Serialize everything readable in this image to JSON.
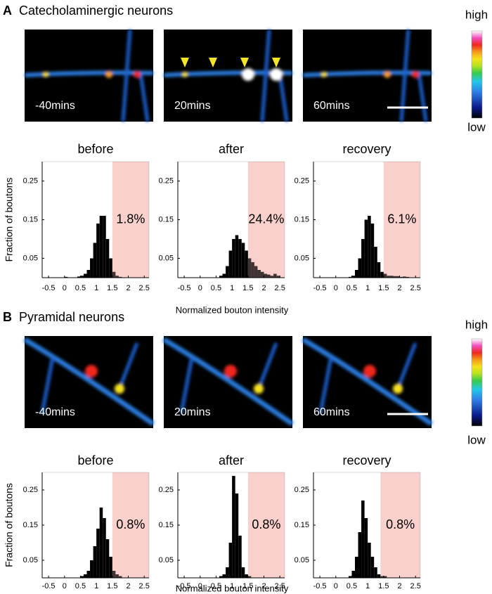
{
  "panels": [
    {
      "label": "A",
      "title": "Catecholaminergic neurons",
      "images": [
        "-40mins",
        "20mins",
        "60mins"
      ],
      "colorbar": {
        "high": "high",
        "low": "low"
      },
      "y_label": "Fraction of boutons",
      "x_label": "Normalized bouton intensity"
    },
    {
      "label": "B",
      "title": "Pyramidal neurons",
      "images": [
        "-40mins",
        "20mins",
        "60mins"
      ],
      "colorbar": {
        "high": "high",
        "low": "low"
      },
      "y_label": "Fraction of boutons",
      "x_label": "Normalized bouton intensity"
    }
  ],
  "chart_data": [
    {
      "type": "histogram",
      "title": "before",
      "annotation": "1.8%",
      "threshold": 1.5,
      "color": "#000000",
      "highlight_color": "#f9d0cc",
      "annotation_color": "#e8262b",
      "bins": [
        0,
        0.1,
        0.2,
        0.3,
        0.4,
        0.5,
        0.6,
        0.7,
        0.8,
        0.9,
        1,
        1.1,
        1.2,
        1.3,
        1.4,
        1.5,
        1.6,
        1.7,
        1.8,
        1.9,
        2,
        2.1,
        2.2,
        2.3,
        2.4,
        2.5
      ],
      "values": [
        0.002,
        0,
        0,
        0,
        0.003,
        0.005,
        0.01,
        0.02,
        0.05,
        0.09,
        0.14,
        0.16,
        0.16,
        0.1,
        0.05,
        0.015,
        0.005,
        0.002,
        0,
        0,
        0,
        0,
        0,
        0,
        0
      ],
      "xlim": [
        -0.7,
        2.65
      ],
      "ylim": [
        0,
        0.3
      ],
      "xticks": [
        -0.5,
        0,
        0.5,
        1,
        1.5,
        2,
        2.5
      ],
      "yticks": [
        0.05,
        0.15,
        0.25
      ]
    },
    {
      "type": "histogram",
      "title": "after",
      "annotation": "24.4%",
      "threshold": 1.5,
      "color": "#000000",
      "highlight_color": "#f9d0cc",
      "annotation_color": "#e8262b",
      "bins": [
        0,
        0.1,
        0.2,
        0.3,
        0.4,
        0.5,
        0.6,
        0.7,
        0.8,
        0.9,
        1,
        1.1,
        1.2,
        1.3,
        1.4,
        1.5,
        1.6,
        1.7,
        1.8,
        1.9,
        2,
        2.1,
        2.2,
        2.3,
        2.4,
        2.5
      ],
      "values": [
        0,
        0,
        0,
        0,
        0,
        0,
        0.005,
        0.01,
        0.03,
        0.07,
        0.1,
        0.11,
        0.1,
        0.09,
        0.07,
        0.05,
        0.04,
        0.03,
        0.02,
        0.015,
        0.01,
        0.008,
        0.005,
        0.01,
        0.005
      ],
      "xlim": [
        -0.7,
        2.65
      ],
      "ylim": [
        0,
        0.3
      ],
      "xticks": [
        -0.5,
        0,
        0.5,
        1,
        1.5,
        2,
        2.5
      ],
      "yticks": [
        0.05,
        0.15,
        0.25
      ]
    },
    {
      "type": "histogram",
      "title": "recovery",
      "annotation": "6.1%",
      "threshold": 1.5,
      "color": "#000000",
      "highlight_color": "#f9d0cc",
      "annotation_color": "#e8262b",
      "bins": [
        0,
        0.1,
        0.2,
        0.3,
        0.4,
        0.5,
        0.6,
        0.7,
        0.8,
        0.9,
        1,
        1.1,
        1.2,
        1.3,
        1.4,
        1.5,
        1.6,
        1.7,
        1.8,
        1.9,
        2,
        2.1,
        2.2,
        2.3,
        2.4,
        2.5
      ],
      "values": [
        0,
        0,
        0,
        0,
        0.002,
        0.005,
        0.02,
        0.05,
        0.1,
        0.15,
        0.16,
        0.14,
        0.08,
        0.04,
        0.015,
        0.01,
        0.005,
        0.005,
        0.004,
        0.004,
        0.002,
        0.003,
        0.002,
        0,
        0
      ],
      "xlim": [
        -0.7,
        2.65
      ],
      "ylim": [
        0,
        0.3
      ],
      "xticks": [
        -0.5,
        0,
        0.5,
        1,
        1.5,
        2,
        2.5
      ],
      "yticks": [
        0.05,
        0.15,
        0.25
      ]
    },
    {
      "type": "histogram",
      "title": "before",
      "annotation": "0.8%",
      "threshold": 1.5,
      "color": "#000000",
      "highlight_color": "#f9d0cc",
      "annotation_color": "#e8262b",
      "bins": [
        0,
        0.1,
        0.2,
        0.3,
        0.4,
        0.5,
        0.6,
        0.7,
        0.8,
        0.9,
        1,
        1.1,
        1.2,
        1.3,
        1.4,
        1.5,
        1.6,
        1.7,
        1.8,
        1.9,
        2,
        2.1,
        2.2,
        2.3,
        2.4,
        2.5
      ],
      "values": [
        0,
        0,
        0,
        0,
        0,
        0.005,
        0.01,
        0.02,
        0.05,
        0.09,
        0.14,
        0.2,
        0.17,
        0.11,
        0.06,
        0.02,
        0.01,
        0.005,
        0,
        0,
        0,
        0,
        0,
        0,
        0
      ],
      "xlim": [
        -0.7,
        2.65
      ],
      "ylim": [
        0,
        0.3
      ],
      "xticks": [
        -0.5,
        0,
        0.5,
        1,
        1.5,
        2,
        2.5
      ],
      "yticks": [
        0.05,
        0.15,
        0.25
      ]
    },
    {
      "type": "histogram",
      "title": "after",
      "annotation": "0.8%",
      "threshold": 1.5,
      "color": "#000000",
      "highlight_color": "#f9d0cc",
      "annotation_color": "#e8262b",
      "bins": [
        0,
        0.1,
        0.2,
        0.3,
        0.4,
        0.5,
        0.6,
        0.7,
        0.8,
        0.9,
        1,
        1.1,
        1.2,
        1.3,
        1.4,
        1.5,
        1.6,
        1.7,
        1.8,
        1.9,
        2,
        2.1,
        2.2,
        2.3,
        2.4,
        2.5
      ],
      "values": [
        0,
        0,
        0,
        0,
        0,
        0,
        0.005,
        0.01,
        0.03,
        0.1,
        0.29,
        0.24,
        0.12,
        0.03,
        0.01,
        0.005,
        0,
        0,
        0,
        0,
        0,
        0,
        0,
        0,
        0
      ],
      "xlim": [
        -0.7,
        2.65
      ],
      "ylim": [
        0,
        0.3
      ],
      "xticks": [
        -0.5,
        0,
        0.5,
        1,
        1.5,
        2,
        2.5
      ],
      "yticks": [
        0.05,
        0.15,
        0.25
      ]
    },
    {
      "type": "histogram",
      "title": "recovery",
      "annotation": "0.8%",
      "threshold": 1.4,
      "color": "#000000",
      "highlight_color": "#f9d0cc",
      "annotation_color": "#e8262b",
      "bins": [
        0,
        0.1,
        0.2,
        0.3,
        0.4,
        0.5,
        0.6,
        0.7,
        0.8,
        0.9,
        1,
        1.1,
        1.2,
        1.3,
        1.4,
        1.5,
        1.6,
        1.7,
        1.8,
        1.9,
        2,
        2.1,
        2.2,
        2.3,
        2.4,
        2.5
      ],
      "values": [
        0,
        0,
        0,
        0,
        0.005,
        0.02,
        0.06,
        0.13,
        0.22,
        0.17,
        0.1,
        0.06,
        0.03,
        0.01,
        0.005,
        0.005,
        0,
        0,
        0,
        0,
        0,
        0,
        0,
        0,
        0
      ],
      "xlim": [
        -0.7,
        2.65
      ],
      "ylim": [
        0,
        0.3
      ],
      "xticks": [
        -0.5,
        0,
        0.5,
        1,
        1.5,
        2,
        2.5
      ],
      "yticks": [
        0.05,
        0.15,
        0.25
      ]
    }
  ]
}
